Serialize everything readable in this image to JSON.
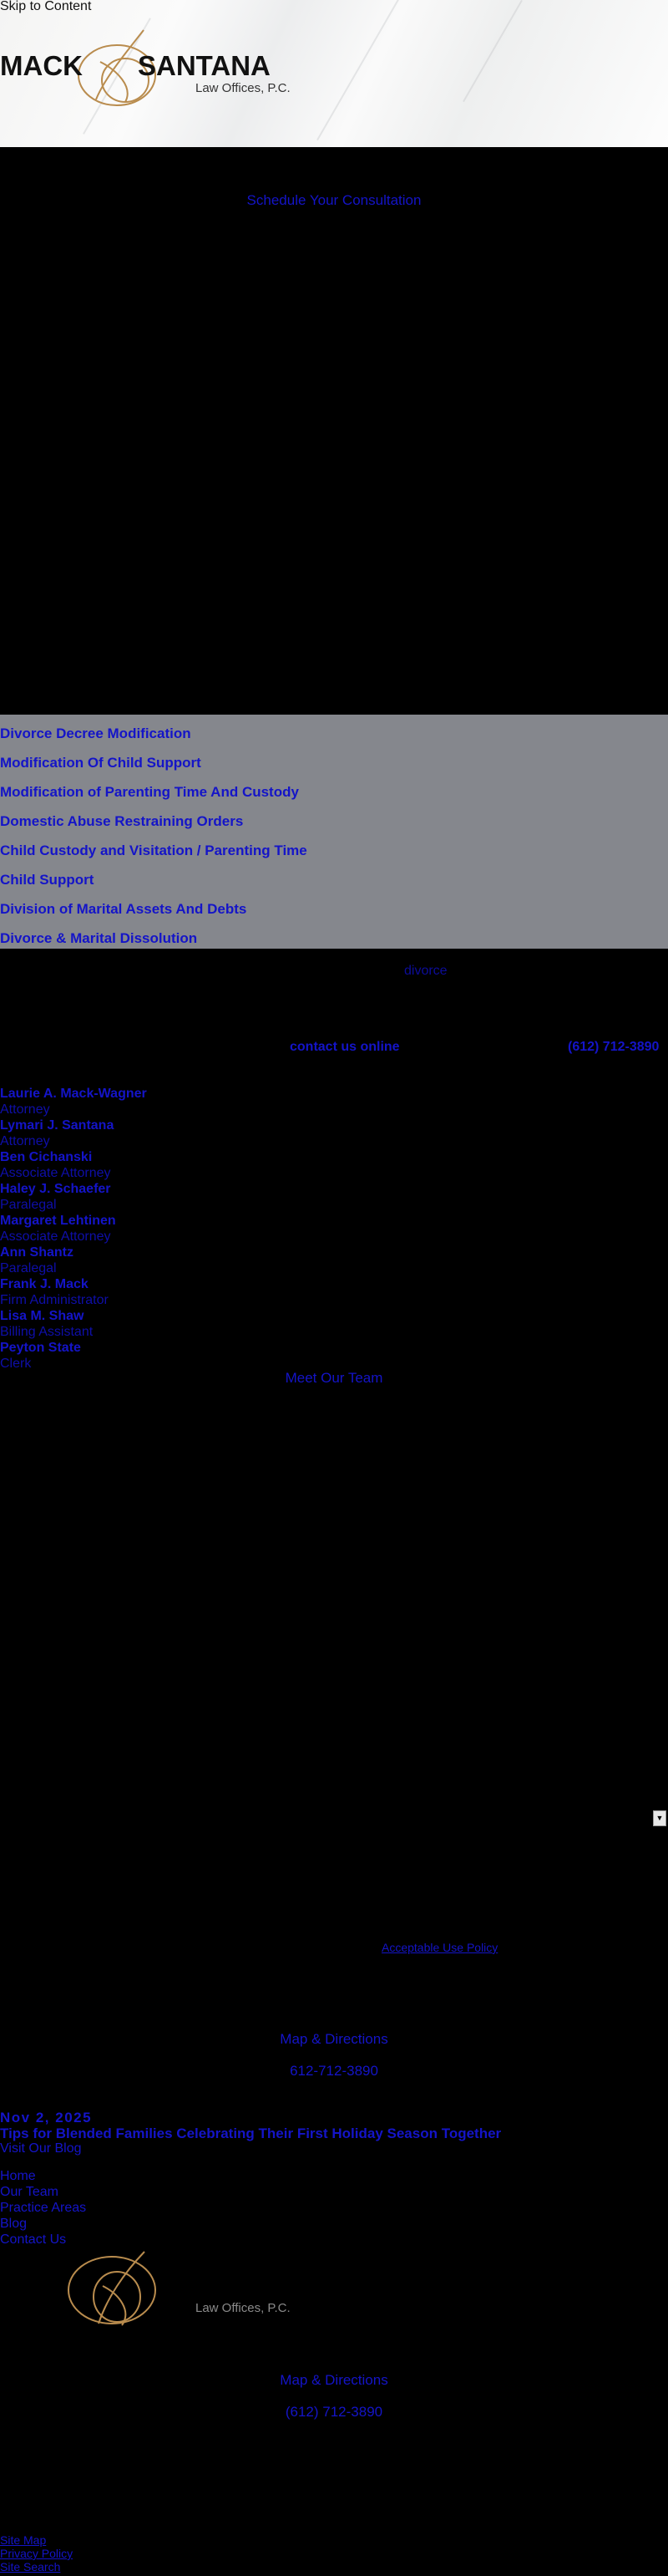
{
  "header": {
    "skip_link": "Skip to Content",
    "logo": {
      "name_left": "MACK",
      "name_right": "SANTANA",
      "tagline": "Law Offices, P.C.",
      "gold": "#b98c4e"
    }
  },
  "hero": {
    "cta": "Schedule Your Consultation"
  },
  "practice_areas": [
    "Divorce Decree Modification",
    "Modification Of Child Support",
    "Modification of Parenting Time And Custody",
    "Domestic Abuse Restraining Orders",
    "Child Custody and Visitation / Parenting Time",
    "Child Support",
    "Division of Marital Assets And Debts",
    "Divorce & Marital Dissolution"
  ],
  "keyword": "divorce",
  "contact": {
    "online": "contact us online",
    "phone": "(612) 712-3890"
  },
  "team": {
    "members": [
      {
        "name": "Laurie A. Mack-Wagner",
        "title": "Attorney"
      },
      {
        "name": "Lymari J. Santana",
        "title": "Attorney"
      },
      {
        "name": "Ben Cichanski",
        "title": "Associate Attorney"
      },
      {
        "name": "Haley J. Schaefer",
        "title": "Paralegal"
      },
      {
        "name": "Margaret Lehtinen",
        "title": "Associate Attorney"
      },
      {
        "name": "Ann Shantz",
        "title": "Paralegal"
      },
      {
        "name": "Frank J. Mack",
        "title": "Firm Administrator"
      },
      {
        "name": "Lisa M. Shaw",
        "title": "Billing Assistant"
      },
      {
        "name": "Peyton State",
        "title": "Clerk"
      }
    ],
    "link": "Meet Our Team"
  },
  "dropdown": {
    "icon": "triangle-down"
  },
  "policy_link": "Acceptable Use Policy",
  "location": {
    "map": "Map & Directions",
    "phone": "612-712-3890"
  },
  "blog": {
    "date": "Nov 2, 2025",
    "title": "Tips for Blended Families Celebrating Their First Holiday Season Together",
    "link": "Visit Our Blog"
  },
  "footer_nav": [
    "Home",
    "Our Team",
    "Practice Areas",
    "Blog",
    "Contact Us"
  ],
  "footer": {
    "tagline": "Law Offices, P.C.",
    "map": "Map & Directions",
    "phone": "(612) 712-3890",
    "links": [
      "Site Map",
      "Privacy Policy",
      "Site Search"
    ]
  }
}
